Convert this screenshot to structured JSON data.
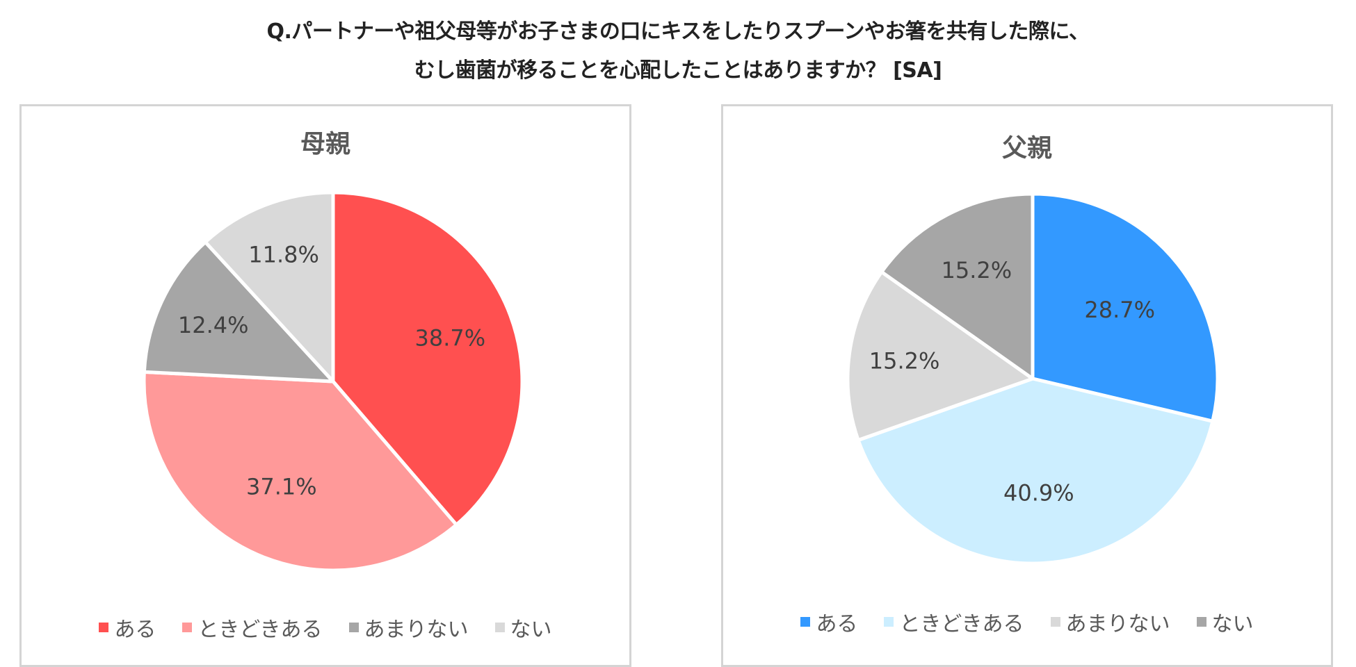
{
  "header": {
    "line1": "Q.パートナーや祖父母等がお子さまの口にキスをしたりスプーンやお箸を共有した際に、",
    "line2": "むし歯菌が移ることを心配したことはありますか？ [SA]"
  },
  "chart_data": [
    {
      "type": "pie",
      "title": "母親",
      "categories": [
        "ある",
        "ときどきある",
        "あまりない",
        "ない"
      ],
      "values": [
        38.7,
        37.1,
        12.4,
        11.8
      ],
      "labels": [
        "38.7%",
        "37.1%",
        "12.4%",
        "11.8%"
      ],
      "colors": [
        "#ff5050",
        "#ff9999",
        "#a6a6a6",
        "#d9d9d9"
      ],
      "legend": "bottom"
    },
    {
      "type": "pie",
      "title": "父親",
      "categories": [
        "ある",
        "ときどきある",
        "あまりない",
        "ない"
      ],
      "values": [
        28.7,
        40.9,
        15.2,
        15.2
      ],
      "labels": [
        "28.7%",
        "40.9%",
        "15.2%",
        "15.2%"
      ],
      "colors": [
        "#3399ff",
        "#cceeff",
        "#d9d9d9",
        "#a6a6a6"
      ],
      "legend": "bottom"
    }
  ]
}
